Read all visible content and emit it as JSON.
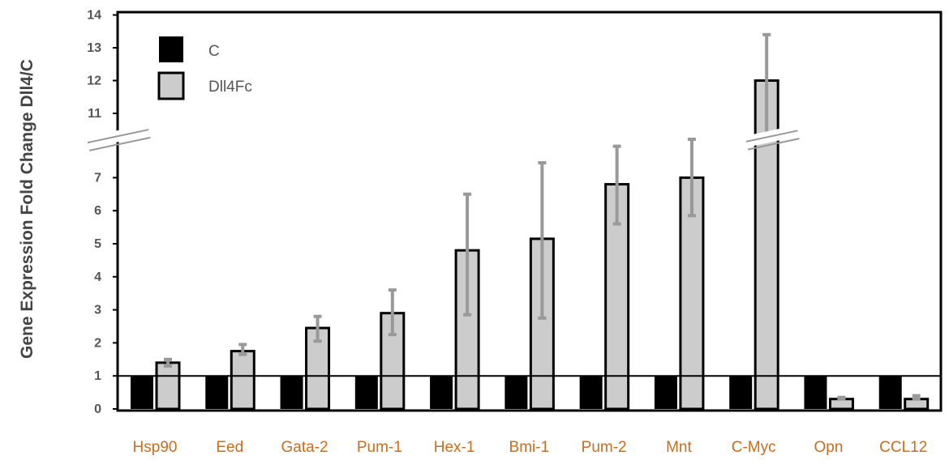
{
  "chart_data": {
    "type": "bar",
    "ylabel": "Gene Expression Fold Change Dll4/C",
    "categories": [
      "Hsp90",
      "Eed",
      "Gata-2",
      "Pum-1",
      "Hex-1",
      "Bmi-1",
      "Pum-2",
      "Mnt",
      "C-Myc",
      "Opn",
      "CCL12"
    ],
    "series": [
      {
        "name": "C",
        "values": [
          1,
          1,
          1,
          1,
          1,
          1,
          1,
          1,
          1,
          1,
          1
        ]
      },
      {
        "name": "Dll4Fc",
        "values": [
          1.4,
          1.75,
          2.45,
          2.9,
          4.8,
          5.15,
          6.8,
          7.0,
          12.0,
          0.3,
          0.3
        ],
        "error_high": [
          1.5,
          1.95,
          2.8,
          3.6,
          6.5,
          7.45,
          7.95,
          8.2,
          13.4,
          0.35,
          0.4
        ],
        "error_low": [
          1.3,
          1.65,
          2.05,
          2.25,
          2.85,
          2.75,
          5.6,
          5.85,
          10.4,
          0.3,
          0.3
        ]
      }
    ],
    "ylim": [
      0,
      14
    ],
    "axis_break": [
      8,
      10.5
    ],
    "yticks_lower": [
      "0",
      "1",
      "2",
      "3",
      "4",
      "5",
      "6",
      "7"
    ],
    "yticks_upper": [
      "11",
      "12",
      "13",
      "14"
    ],
    "legend": {
      "position": "top-left",
      "entries": [
        "C",
        "Dll4Fc"
      ]
    },
    "grid": false,
    "colors": {
      "C": "#000000",
      "Dll4Fc": "#cccccc",
      "error_bar": "#999999",
      "category_label": "#c86d1e"
    }
  }
}
